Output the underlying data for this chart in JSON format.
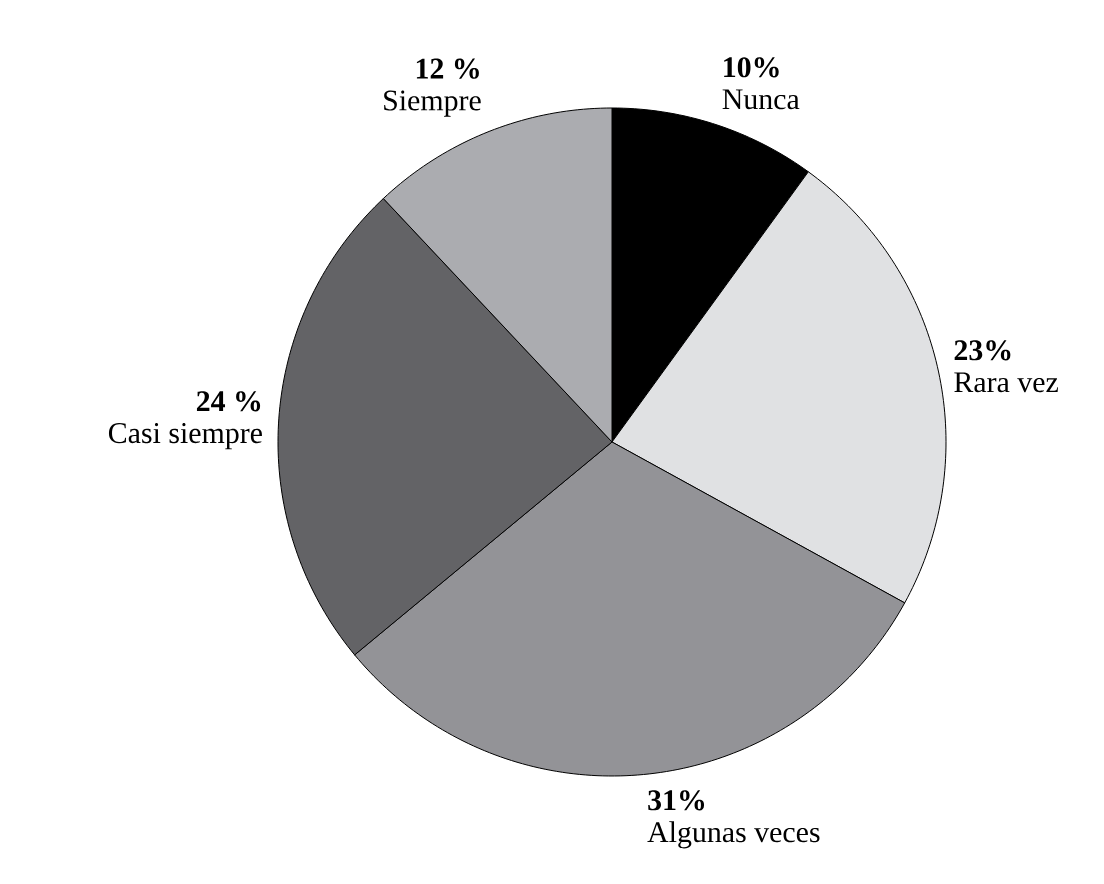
{
  "chart_data": {
    "type": "pie",
    "categories": [
      "Nunca",
      "Rara vez",
      "Algunas veces",
      "Casi siempre",
      "Siempre"
    ],
    "values": [
      10,
      23,
      31,
      24,
      12
    ],
    "value_labels": [
      "10%",
      "23%",
      "31%",
      "24 %",
      "12 %"
    ],
    "colors": [
      "#000000",
      "#e0e1e3",
      "#939397",
      "#636366",
      "#abacb0"
    ]
  }
}
